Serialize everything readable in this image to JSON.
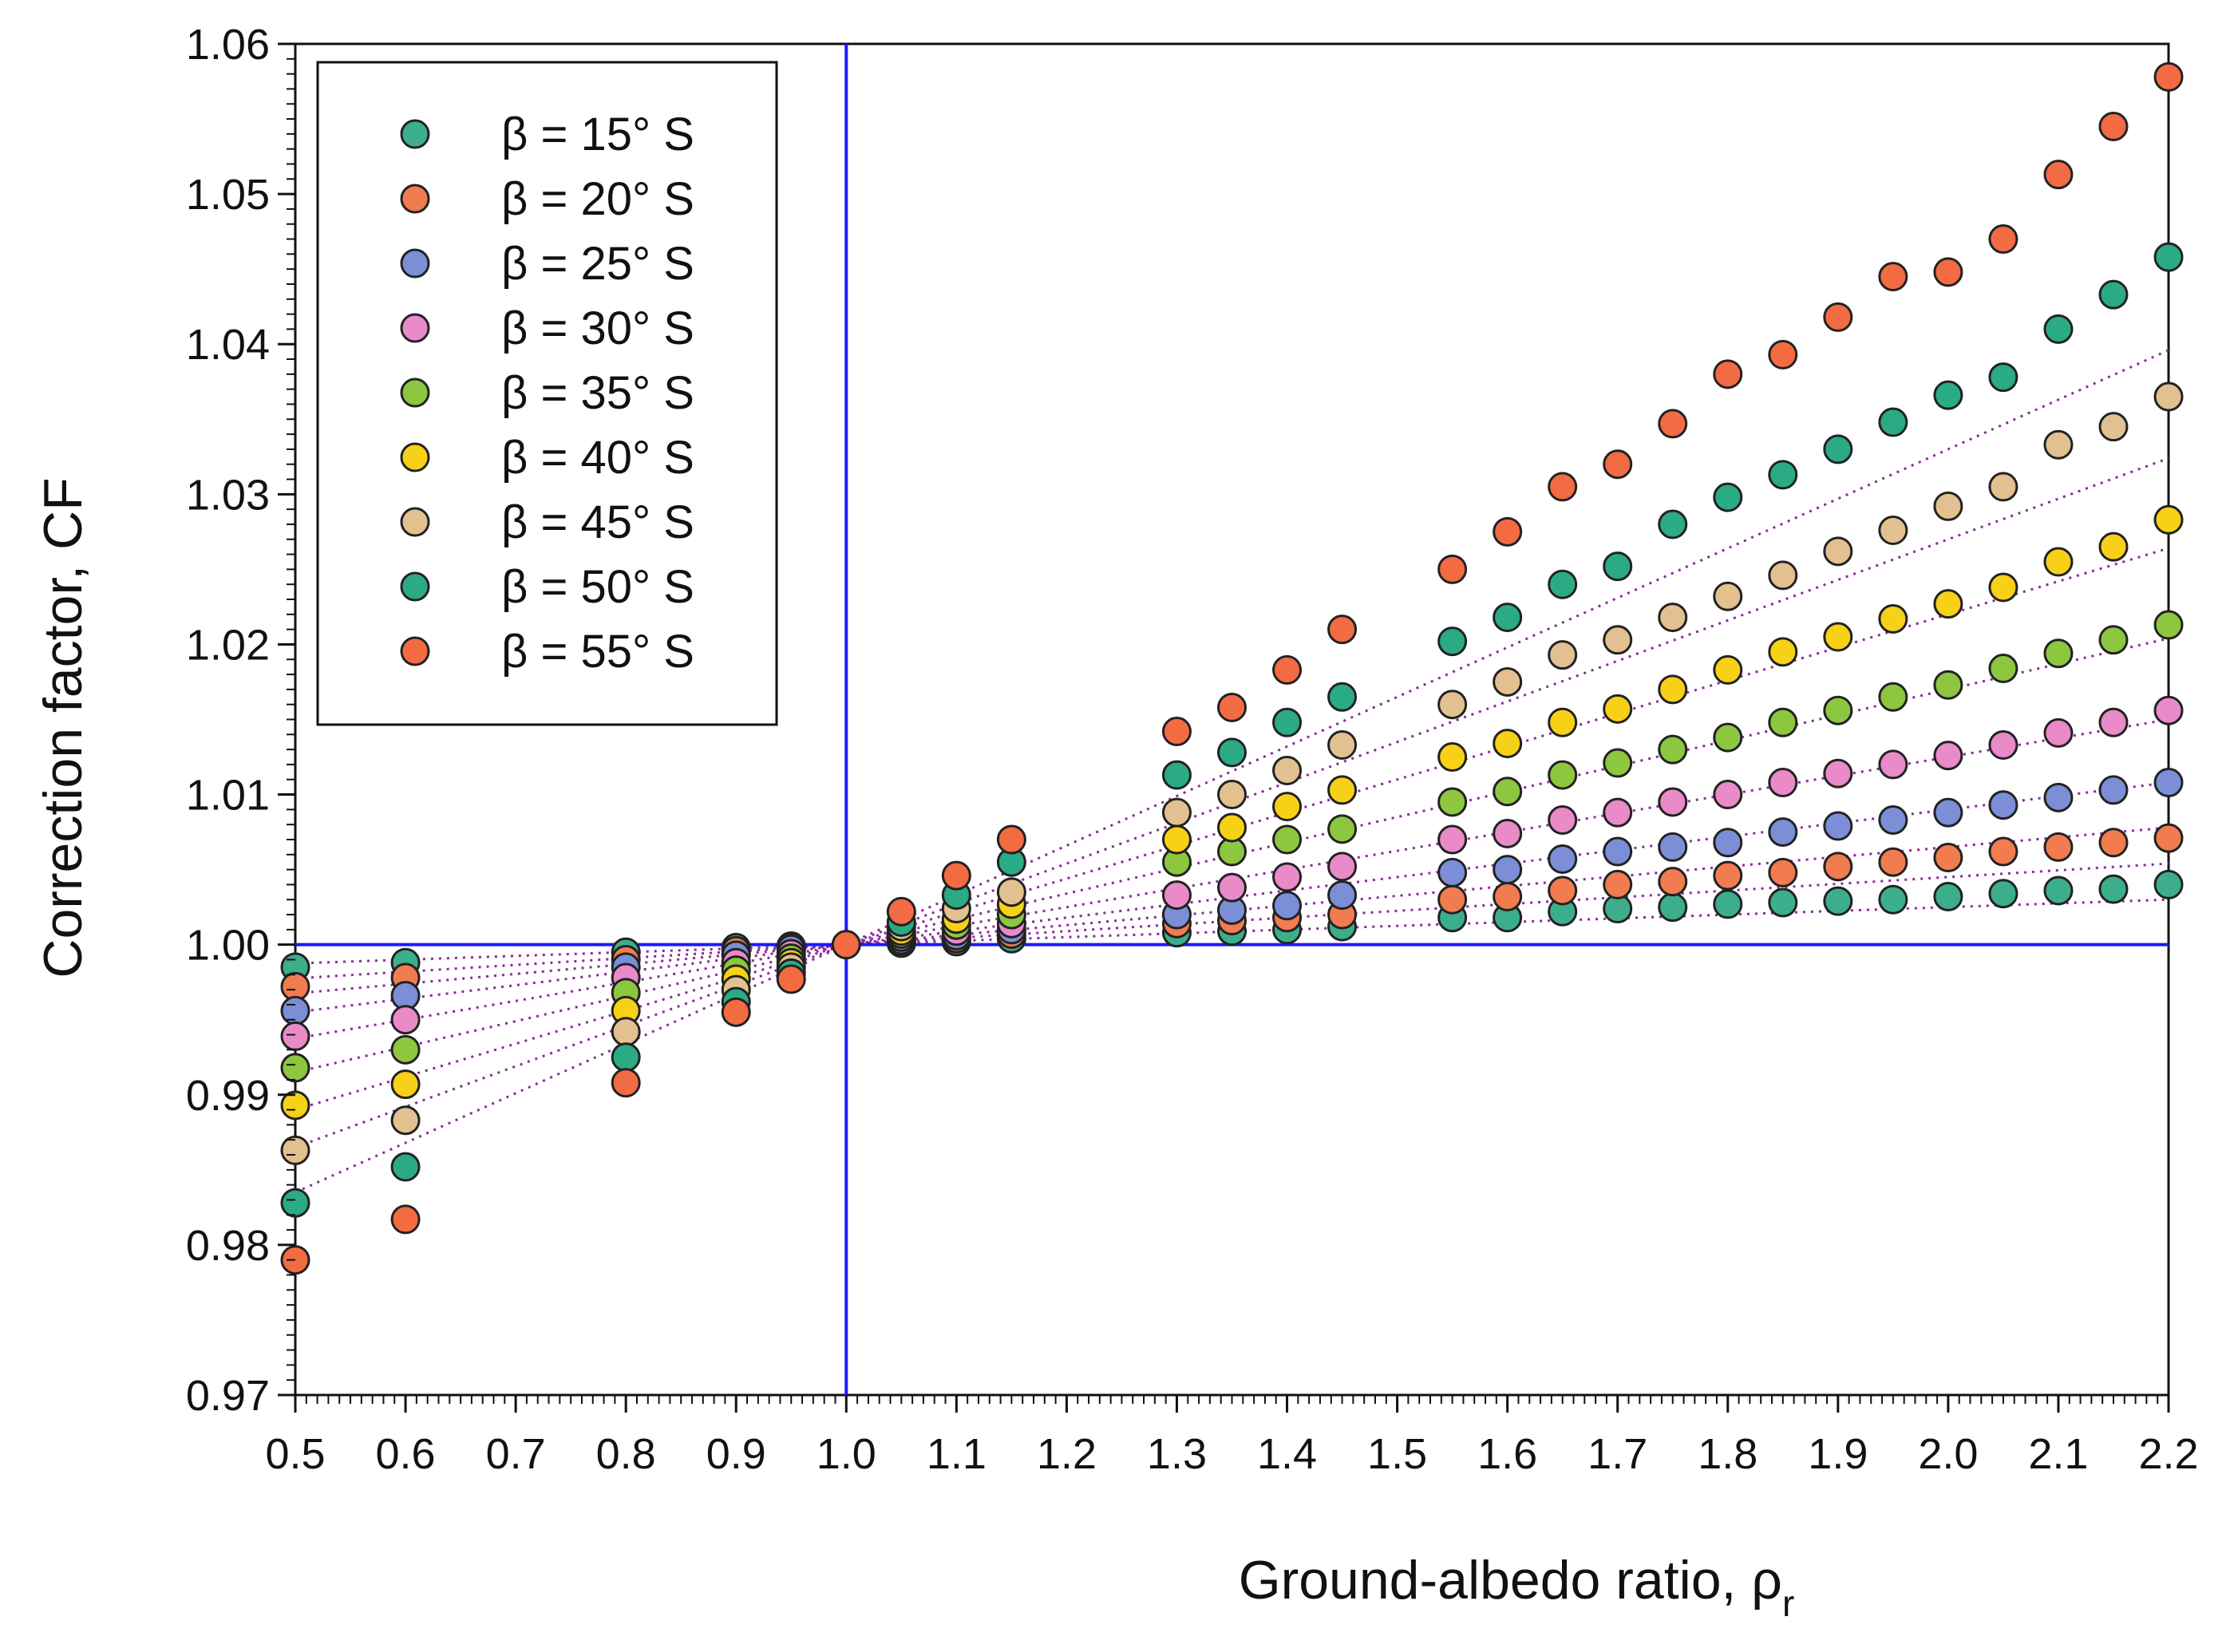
{
  "chart_data": {
    "type": "scatter",
    "title": "",
    "xlabel": "Ground-albedo ratio, ρ",
    "xlabel_subscript": "r",
    "ylabel": "Correction factor, CF",
    "xlim": [
      0.5,
      2.2
    ],
    "ylim": [
      0.97,
      1.06
    ],
    "xticks": [
      "0.5",
      "0.6",
      "0.7",
      "0.8",
      "0.9",
      "1.0",
      "1.1",
      "1.2",
      "1.3",
      "1.4",
      "1.5",
      "1.6",
      "1.7",
      "1.8",
      "1.9",
      "2.0",
      "2.1",
      "2.2"
    ],
    "yticks": [
      "0.97",
      "0.98",
      "0.99",
      "1.00",
      "1.01",
      "1.02",
      "1.03",
      "1.04",
      "1.05",
      "1.06"
    ],
    "grid": false,
    "legend_position": "top-left",
    "reference_lines": [
      {
        "orientation": "horizontal",
        "value": 1.0,
        "color": "#1a1aff"
      },
      {
        "orientation": "vertical",
        "value": 1.0,
        "color": "#1a1aff"
      }
    ],
    "fit_line_color": "#8a2a9a",
    "series": [
      {
        "name": "β = 15° S",
        "color": "#3dae8c",
        "slope": 0.0025,
        "points": [
          [
            0.5,
            0.9985
          ],
          [
            0.6,
            0.9988
          ],
          [
            0.8,
            0.9995
          ],
          [
            0.9,
            0.9998
          ],
          [
            0.95,
            0.9999
          ],
          [
            1.05,
            1.0001
          ],
          [
            1.1,
            1.0002
          ],
          [
            1.15,
            1.0004
          ],
          [
            1.3,
            1.0008
          ],
          [
            1.35,
            1.0009
          ],
          [
            1.4,
            1.001
          ],
          [
            1.45,
            1.0012
          ],
          [
            1.55,
            1.0018
          ],
          [
            1.6,
            1.0018
          ],
          [
            1.65,
            1.0022
          ],
          [
            1.7,
            1.0024
          ],
          [
            1.75,
            1.0025
          ],
          [
            1.8,
            1.0027
          ],
          [
            1.85,
            1.0028
          ],
          [
            1.9,
            1.0029
          ],
          [
            1.95,
            1.003
          ],
          [
            2.0,
            1.0032
          ],
          [
            2.05,
            1.0034
          ],
          [
            2.1,
            1.0036
          ],
          [
            2.15,
            1.0037
          ],
          [
            2.2,
            1.004
          ]
        ]
      },
      {
        "name": "β = 20° S",
        "color": "#f07c50",
        "slope": 0.0045,
        "points": [
          [
            0.5,
            0.9972
          ],
          [
            0.6,
            0.9978
          ],
          [
            0.8,
            0.999
          ],
          [
            0.9,
            0.9996
          ],
          [
            0.95,
            0.9998
          ],
          [
            1.05,
            1.0002
          ],
          [
            1.1,
            1.0004
          ],
          [
            1.15,
            1.0007
          ],
          [
            1.3,
            1.0014
          ],
          [
            1.35,
            1.0016
          ],
          [
            1.4,
            1.0018
          ],
          [
            1.45,
            1.002
          ],
          [
            1.55,
            1.003
          ],
          [
            1.6,
            1.0032
          ],
          [
            1.65,
            1.0036
          ],
          [
            1.7,
            1.004
          ],
          [
            1.75,
            1.0042
          ],
          [
            1.8,
            1.0046
          ],
          [
            1.85,
            1.0048
          ],
          [
            1.9,
            1.0052
          ],
          [
            1.95,
            1.0055
          ],
          [
            2.0,
            1.0058
          ],
          [
            2.05,
            1.0062
          ],
          [
            2.1,
            1.0065
          ],
          [
            2.15,
            1.0068
          ],
          [
            2.2,
            1.0071
          ]
        ]
      },
      {
        "name": "β = 25° S",
        "color": "#7b8ed6",
        "slope": 0.0065,
        "points": [
          [
            0.5,
            0.9956
          ],
          [
            0.6,
            0.9966
          ],
          [
            0.8,
            0.9985
          ],
          [
            0.9,
            0.9993
          ],
          [
            0.95,
            0.9997
          ],
          [
            1.05,
            1.0003
          ],
          [
            1.1,
            1.0006
          ],
          [
            1.15,
            1.001
          ],
          [
            1.3,
            1.002
          ],
          [
            1.35,
            1.0023
          ],
          [
            1.4,
            1.0026
          ],
          [
            1.45,
            1.0033
          ],
          [
            1.55,
            1.0048
          ],
          [
            1.6,
            1.005
          ],
          [
            1.65,
            1.0057
          ],
          [
            1.7,
            1.0062
          ],
          [
            1.75,
            1.0065
          ],
          [
            1.8,
            1.0068
          ],
          [
            1.85,
            1.0075
          ],
          [
            1.9,
            1.0079
          ],
          [
            1.95,
            1.0083
          ],
          [
            2.0,
            1.0088
          ],
          [
            2.05,
            1.0093
          ],
          [
            2.1,
            1.0098
          ],
          [
            2.15,
            1.0103
          ],
          [
            2.2,
            1.0108
          ]
        ]
      },
      {
        "name": "β = 30° S",
        "color": "#e98ac9",
        "slope": 0.009,
        "points": [
          [
            0.5,
            0.9939
          ],
          [
            0.6,
            0.995
          ],
          [
            0.8,
            0.9978
          ],
          [
            0.9,
            0.9988
          ],
          [
            0.95,
            0.9994
          ],
          [
            1.05,
            1.0005
          ],
          [
            1.1,
            1.0009
          ],
          [
            1.15,
            1.0014
          ],
          [
            1.3,
            1.0033
          ],
          [
            1.35,
            1.0038
          ],
          [
            1.4,
            1.0045
          ],
          [
            1.45,
            1.0052
          ],
          [
            1.55,
            1.007
          ],
          [
            1.6,
            1.0074
          ],
          [
            1.65,
            1.0083
          ],
          [
            1.7,
            1.0088
          ],
          [
            1.75,
            1.0095
          ],
          [
            1.8,
            1.01
          ],
          [
            1.85,
            1.0108
          ],
          [
            1.9,
            1.0114
          ],
          [
            1.95,
            1.012
          ],
          [
            2.0,
            1.0126
          ],
          [
            2.05,
            1.0133
          ],
          [
            2.1,
            1.0141
          ],
          [
            2.15,
            1.0148
          ],
          [
            2.2,
            1.0156
          ]
        ]
      },
      {
        "name": "β = 35° S",
        "color": "#8dc63f",
        "slope": 0.0125,
        "points": [
          [
            0.5,
            0.9918
          ],
          [
            0.6,
            0.993
          ],
          [
            0.8,
            0.9968
          ],
          [
            0.9,
            0.9983
          ],
          [
            0.95,
            0.9991
          ],
          [
            1.05,
            1.0007
          ],
          [
            1.1,
            1.0013
          ],
          [
            1.15,
            1.002
          ],
          [
            1.3,
            1.0055
          ],
          [
            1.35,
            1.0062
          ],
          [
            1.4,
            1.007
          ],
          [
            1.45,
            1.0077
          ],
          [
            1.55,
            1.0095
          ],
          [
            1.6,
            1.0102
          ],
          [
            1.65,
            1.0113
          ],
          [
            1.7,
            1.0121
          ],
          [
            1.75,
            1.013
          ],
          [
            1.8,
            1.0138
          ],
          [
            1.85,
            1.0148
          ],
          [
            1.9,
            1.0156
          ],
          [
            1.95,
            1.0165
          ],
          [
            2.0,
            1.0173
          ],
          [
            2.05,
            1.0184
          ],
          [
            2.1,
            1.0194
          ],
          [
            2.15,
            1.0203
          ],
          [
            2.2,
            1.0213
          ]
        ]
      },
      {
        "name": "β = 40° S",
        "color": "#f7d117",
        "slope": 0.017,
        "points": [
          [
            0.5,
            0.9893
          ],
          [
            0.6,
            0.9907
          ],
          [
            0.8,
            0.9956
          ],
          [
            0.9,
            0.9977
          ],
          [
            0.95,
            0.9988
          ],
          [
            1.05,
            1.0009
          ],
          [
            1.1,
            1.0017
          ],
          [
            1.15,
            1.0027
          ],
          [
            1.3,
            1.007
          ],
          [
            1.35,
            1.0078
          ],
          [
            1.4,
            1.0092
          ],
          [
            1.45,
            1.0103
          ],
          [
            1.55,
            1.0125
          ],
          [
            1.6,
            1.0134
          ],
          [
            1.65,
            1.0148
          ],
          [
            1.7,
            1.0157
          ],
          [
            1.75,
            1.017
          ],
          [
            1.8,
            1.0183
          ],
          [
            1.85,
            1.0195
          ],
          [
            1.9,
            1.0205
          ],
          [
            1.95,
            1.0217
          ],
          [
            2.0,
            1.0227
          ],
          [
            2.05,
            1.0238
          ],
          [
            2.1,
            1.0255
          ],
          [
            2.15,
            1.0265
          ],
          [
            2.2,
            1.0283
          ]
        ]
      },
      {
        "name": "β = 45° S",
        "color": "#e3c090",
        "slope": 0.022,
        "points": [
          [
            0.5,
            0.9863
          ],
          [
            0.6,
            0.9883
          ],
          [
            0.8,
            0.9942
          ],
          [
            0.9,
            0.997
          ],
          [
            0.95,
            0.9985
          ],
          [
            1.05,
            1.0012
          ],
          [
            1.1,
            1.0024
          ],
          [
            1.15,
            1.0035
          ],
          [
            1.3,
            1.0088
          ],
          [
            1.35,
            1.01
          ],
          [
            1.4,
            1.0116
          ],
          [
            1.45,
            1.0133
          ],
          [
            1.55,
            1.016
          ],
          [
            1.6,
            1.0175
          ],
          [
            1.65,
            1.0193
          ],
          [
            1.7,
            1.0203
          ],
          [
            1.75,
            1.0218
          ],
          [
            1.8,
            1.0232
          ],
          [
            1.85,
            1.0246
          ],
          [
            1.9,
            1.0262
          ],
          [
            1.95,
            1.0276
          ],
          [
            2.0,
            1.0292
          ],
          [
            2.05,
            1.0305
          ],
          [
            2.1,
            1.0333
          ],
          [
            2.15,
            1.0345
          ],
          [
            2.2,
            1.0365
          ]
        ]
      },
      {
        "name": "β = 50° S",
        "color": "#2aab85",
        "slope": 0.027,
        "points": [
          [
            0.5,
            0.9828
          ],
          [
            0.6,
            0.9852
          ],
          [
            0.8,
            0.9925
          ],
          [
            0.9,
            0.9962
          ],
          [
            0.95,
            0.9981
          ],
          [
            1.05,
            1.0015
          ],
          [
            1.1,
            1.0033
          ],
          [
            1.15,
            1.0055
          ],
          [
            1.3,
            1.0113
          ],
          [
            1.35,
            1.0128
          ],
          [
            1.4,
            1.0148
          ],
          [
            1.45,
            1.0165
          ],
          [
            1.55,
            1.0202
          ],
          [
            1.6,
            1.0218
          ],
          [
            1.65,
            1.024
          ],
          [
            1.7,
            1.0252
          ],
          [
            1.75,
            1.028
          ],
          [
            1.8,
            1.0298
          ],
          [
            1.85,
            1.0313
          ],
          [
            1.9,
            1.033
          ],
          [
            1.95,
            1.0348
          ],
          [
            2.0,
            1.0366
          ],
          [
            2.05,
            1.0378
          ],
          [
            2.1,
            1.041
          ],
          [
            2.15,
            1.0433
          ],
          [
            2.2,
            1.0458
          ]
        ]
      },
      {
        "name": "β = 55° S",
        "color": "#f26b43",
        "slope": 0.033,
        "points": [
          [
            0.5,
            0.979
          ],
          [
            0.6,
            0.9817
          ],
          [
            0.8,
            0.9908
          ],
          [
            0.9,
            0.9955
          ],
          [
            0.95,
            0.9977
          ],
          [
            1.05,
            1.0022
          ],
          [
            1.1,
            1.0046
          ],
          [
            1.15,
            1.007
          ],
          [
            1.3,
            1.0142
          ],
          [
            1.35,
            1.0158
          ],
          [
            1.4,
            1.0183
          ],
          [
            1.45,
            1.021
          ],
          [
            1.55,
            1.025
          ],
          [
            1.6,
            1.0275
          ],
          [
            1.65,
            1.0305
          ],
          [
            1.7,
            1.032
          ],
          [
            1.75,
            1.0347
          ],
          [
            1.8,
            1.038
          ],
          [
            1.85,
            1.0393
          ],
          [
            1.9,
            1.0418
          ],
          [
            1.95,
            1.0445
          ],
          [
            2.0,
            1.0448
          ],
          [
            2.05,
            1.047
          ],
          [
            2.1,
            1.0513
          ],
          [
            2.15,
            1.0545
          ],
          [
            2.2,
            1.0578
          ]
        ]
      }
    ]
  }
}
